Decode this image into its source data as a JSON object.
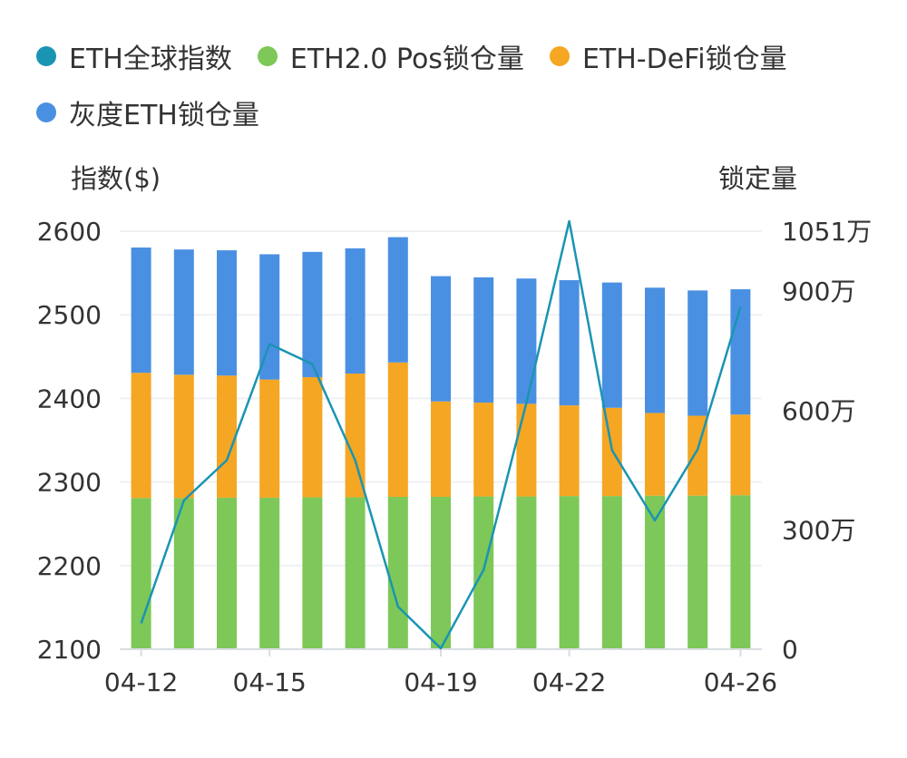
{
  "legend": [
    {
      "label": "ETH全球指数",
      "color": "#1a94b3"
    },
    {
      "label": "ETH2.0 Pos锁仓量",
      "color": "#7dc858"
    },
    {
      "label": "ETH-DeFi锁仓量",
      "color": "#f5a623"
    },
    {
      "label": "灰度ETH锁仓量",
      "color": "#4a90e2"
    }
  ],
  "axis_titles": {
    "left": "指数($)",
    "right": "锁定量"
  },
  "chart_data": {
    "type": "bar",
    "stacked": true,
    "dates": [
      "04-12",
      "04-13",
      "04-14",
      "04-15",
      "04-16",
      "04-17",
      "04-18",
      "04-19",
      "04-20",
      "04-21",
      "04-22",
      "04-23",
      "04-24",
      "04-25",
      "04-26"
    ],
    "x_tick_labels": [
      "04-12",
      "04-15",
      "04-19",
      "04-22",
      "04-26"
    ],
    "left_axis": {
      "title": "指数($)",
      "range": [
        2100,
        2600
      ],
      "ticks": [
        "2100",
        "2200",
        "2300",
        "2400",
        "2500",
        "2600"
      ]
    },
    "right_axis": {
      "title": "锁定量",
      "unit": "万",
      "range": [
        0,
        1051
      ],
      "ticks": [
        {
          "value": 0,
          "label": "0"
        },
        {
          "value": 300,
          "label": "300万"
        },
        {
          "value": 600,
          "label": "600万"
        },
        {
          "value": 900,
          "label": "900万"
        },
        {
          "value": 1051,
          "label": "1051万"
        }
      ]
    },
    "series": [
      {
        "name": "ETH2.0 Pos锁仓量",
        "type": "bar",
        "axis": "right",
        "color": "#7dc858",
        "values": [
          380,
          380,
          381,
          381,
          382,
          382,
          383,
          383,
          384,
          384,
          385,
          385,
          386,
          386,
          387
        ]
      },
      {
        "name": "ETH-DeFi锁仓量",
        "type": "bar",
        "axis": "right",
        "color": "#f5a623",
        "values": [
          315,
          310,
          307,
          297,
          302,
          311,
          338,
          240,
          236,
          233,
          228,
          222,
          208,
          201,
          203
        ]
      },
      {
        "name": "灰度ETH锁仓量",
        "type": "bar",
        "axis": "right",
        "color": "#4a90e2",
        "values": [
          315,
          315,
          315,
          315,
          315,
          315,
          315,
          315,
          315,
          315,
          315,
          315,
          315,
          315,
          315
        ]
      },
      {
        "name": "ETH全球指数",
        "type": "line",
        "axis": "left",
        "color": "#1a94b3",
        "values": [
          2131,
          2278,
          2326,
          2465,
          2441,
          2326,
          2151,
          2101,
          2195,
          2395,
          2612,
          2338,
          2254,
          2339,
          2509
        ]
      }
    ]
  }
}
